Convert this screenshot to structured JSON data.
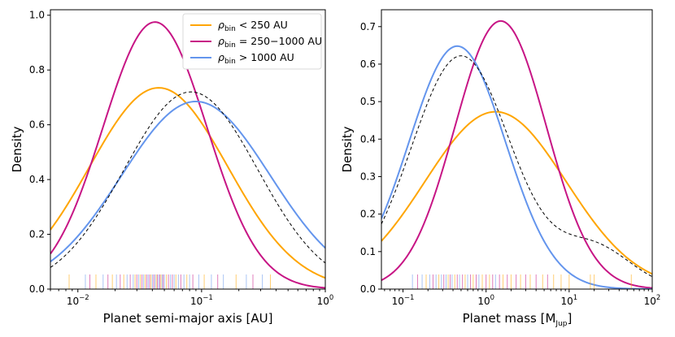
{
  "colors": {
    "close": "#ffa500",
    "mid": "#c71585",
    "wide": "#6495ed",
    "all": "#000000"
  },
  "legend": [
    {
      "sym": "ρ",
      "sub": "bin",
      "rest": " < 250 AU",
      "color": "#ffa500"
    },
    {
      "sym": "ρ",
      "sub": "bin",
      "rest": " = 250−1000 AU",
      "color": "#c71585"
    },
    {
      "sym": "ρ",
      "sub": "bin",
      "rest": " > 1000 AU",
      "color": "#6495ed"
    }
  ],
  "chart_data": [
    {
      "type": "line",
      "xscale": "log",
      "xlim": [
        0.006,
        1.0
      ],
      "ylim": [
        0,
        1.02
      ],
      "xlabel": "Planet semi-major axis [AU]",
      "ylabel": "Density",
      "yticks": [
        "0.0",
        "0.2",
        "0.4",
        "0.6",
        "0.8",
        "1.0"
      ],
      "ytick_values": [
        0,
        0.2,
        0.4,
        0.6,
        0.8,
        1.0
      ],
      "xticks": [
        {
          "base": "10",
          "exp": "−2",
          "value": 0.01
        },
        {
          "base": "10",
          "exp": "−1",
          "value": 0.1
        },
        {
          "base": "10",
          "exp": "0",
          "value": 1.0
        }
      ],
      "series": [
        {
          "name": "close",
          "peak_x": 0.045,
          "peak_y": 0.735,
          "sigma_dex": 0.56,
          "lower_floor": 0.0,
          "upper_floor": 0.0
        },
        {
          "name": "mid",
          "peak_x": 0.042,
          "peak_y": 0.975,
          "sigma_dex": 0.42,
          "lower_floor": 0.0,
          "upper_floor": 0.0
        },
        {
          "name": "wide",
          "peak_x": 0.09,
          "peak_y": 0.685,
          "sigma_dex": 0.6,
          "lower_floor": 0.0,
          "upper_floor": 0.0
        },
        {
          "name": "all",
          "peak_x": 0.082,
          "peak_y": 0.72,
          "sigma_dex": 0.54,
          "lower_floor": 0.0,
          "upper_floor": 0.0,
          "dashed": true
        }
      ],
      "rug": [
        {
          "x": 0.0085,
          "c": "close"
        },
        {
          "x": 0.0115,
          "c": "wide"
        },
        {
          "x": 0.0125,
          "c": "mid"
        },
        {
          "x": 0.014,
          "c": "close"
        },
        {
          "x": 0.016,
          "c": "wide"
        },
        {
          "x": 0.0175,
          "c": "mid"
        },
        {
          "x": 0.019,
          "c": "close"
        },
        {
          "x": 0.0205,
          "c": "wide"
        },
        {
          "x": 0.022,
          "c": "mid"
        },
        {
          "x": 0.0235,
          "c": "close"
        },
        {
          "x": 0.025,
          "c": "wide"
        },
        {
          "x": 0.0265,
          "c": "mid"
        },
        {
          "x": 0.028,
          "c": "wide"
        },
        {
          "x": 0.029,
          "c": "close"
        },
        {
          "x": 0.03,
          "c": "mid"
        },
        {
          "x": 0.031,
          "c": "wide"
        },
        {
          "x": 0.032,
          "c": "close"
        },
        {
          "x": 0.033,
          "c": "mid"
        },
        {
          "x": 0.034,
          "c": "wide"
        },
        {
          "x": 0.035,
          "c": "close"
        },
        {
          "x": 0.036,
          "c": "mid"
        },
        {
          "x": 0.037,
          "c": "wide"
        },
        {
          "x": 0.038,
          "c": "mid"
        },
        {
          "x": 0.039,
          "c": "close"
        },
        {
          "x": 0.04,
          "c": "wide"
        },
        {
          "x": 0.041,
          "c": "mid"
        },
        {
          "x": 0.042,
          "c": "wide"
        },
        {
          "x": 0.043,
          "c": "close"
        },
        {
          "x": 0.044,
          "c": "mid"
        },
        {
          "x": 0.045,
          "c": "wide"
        },
        {
          "x": 0.046,
          "c": "mid"
        },
        {
          "x": 0.047,
          "c": "close"
        },
        {
          "x": 0.048,
          "c": "wide"
        },
        {
          "x": 0.049,
          "c": "mid"
        },
        {
          "x": 0.05,
          "c": "wide"
        },
        {
          "x": 0.052,
          "c": "close"
        },
        {
          "x": 0.054,
          "c": "mid"
        },
        {
          "x": 0.056,
          "c": "wide"
        },
        {
          "x": 0.058,
          "c": "mid"
        },
        {
          "x": 0.06,
          "c": "wide"
        },
        {
          "x": 0.062,
          "c": "close"
        },
        {
          "x": 0.065,
          "c": "wide"
        },
        {
          "x": 0.068,
          "c": "mid"
        },
        {
          "x": 0.072,
          "c": "wide"
        },
        {
          "x": 0.076,
          "c": "close"
        },
        {
          "x": 0.08,
          "c": "wide"
        },
        {
          "x": 0.085,
          "c": "mid"
        },
        {
          "x": 0.095,
          "c": "wide"
        },
        {
          "x": 0.105,
          "c": "close"
        },
        {
          "x": 0.12,
          "c": "wide"
        },
        {
          "x": 0.135,
          "c": "mid"
        },
        {
          "x": 0.15,
          "c": "wide"
        },
        {
          "x": 0.19,
          "c": "close"
        },
        {
          "x": 0.23,
          "c": "wide"
        },
        {
          "x": 0.26,
          "c": "mid"
        },
        {
          "x": 0.31,
          "c": "wide"
        },
        {
          "x": 0.36,
          "c": "close"
        }
      ]
    },
    {
      "type": "line",
      "xscale": "log",
      "xlim": [
        0.055,
        100.0
      ],
      "ylim": [
        0,
        0.745
      ],
      "xlabel_main": "Planet mass [M",
      "xlabel_sub": "Jup",
      "xlabel_end": "]",
      "ylabel": "Density",
      "yticks": [
        "0.0",
        "0.1",
        "0.2",
        "0.3",
        "0.4",
        "0.5",
        "0.6",
        "0.7"
      ],
      "ytick_values": [
        0,
        0.1,
        0.2,
        0.3,
        0.4,
        0.5,
        0.6,
        0.7
      ],
      "xticks": [
        {
          "base": "10",
          "exp": "−1",
          "value": 0.1
        },
        {
          "base": "10",
          "exp": "0",
          "value": 1.0
        },
        {
          "base": "10",
          "exp": "1",
          "value": 10.0
        },
        {
          "base": "10",
          "exp": "2",
          "value": 100.0
        }
      ],
      "series": [
        {
          "name": "close",
          "peak_x": 1.3,
          "peak_y": 0.473,
          "sigma_dex": 0.85,
          "lower_floor": 0.0,
          "upper_floor": 0.0
        },
        {
          "name": "mid",
          "peak_x": 1.5,
          "peak_y": 0.715,
          "sigma_dex": 0.55,
          "lower_floor": 0.0,
          "upper_floor": 0.0
        },
        {
          "name": "wide",
          "peak_x": 0.45,
          "peak_y": 0.648,
          "sigma_dex": 0.58,
          "lower_floor": 0.0,
          "upper_floor": 0.0
        },
        {
          "name": "all",
          "peak_x": 0.5,
          "peak_y": 0.622,
          "sigma_dex": 0.6,
          "lower_floor": 0.0,
          "upper_floor": 0.0,
          "dashed": true,
          "tail": true
        }
      ],
      "rug": [
        {
          "x": 0.13,
          "c": "wide"
        },
        {
          "x": 0.15,
          "c": "mid"
        },
        {
          "x": 0.17,
          "c": "wide"
        },
        {
          "x": 0.19,
          "c": "close"
        },
        {
          "x": 0.21,
          "c": "wide"
        },
        {
          "x": 0.23,
          "c": "mid"
        },
        {
          "x": 0.25,
          "c": "wide"
        },
        {
          "x": 0.27,
          "c": "close"
        },
        {
          "x": 0.29,
          "c": "wide"
        },
        {
          "x": 0.31,
          "c": "mid"
        },
        {
          "x": 0.33,
          "c": "wide"
        },
        {
          "x": 0.35,
          "c": "close"
        },
        {
          "x": 0.37,
          "c": "mid"
        },
        {
          "x": 0.39,
          "c": "wide"
        },
        {
          "x": 0.42,
          "c": "close"
        },
        {
          "x": 0.45,
          "c": "mid"
        },
        {
          "x": 0.48,
          "c": "wide"
        },
        {
          "x": 0.52,
          "c": "mid"
        },
        {
          "x": 0.56,
          "c": "close"
        },
        {
          "x": 0.6,
          "c": "wide"
        },
        {
          "x": 0.65,
          "c": "mid"
        },
        {
          "x": 0.7,
          "c": "close"
        },
        {
          "x": 0.76,
          "c": "mid"
        },
        {
          "x": 0.82,
          "c": "wide"
        },
        {
          "x": 0.9,
          "c": "close"
        },
        {
          "x": 1.0,
          "c": "mid"
        },
        {
          "x": 1.1,
          "c": "close"
        },
        {
          "x": 1.2,
          "c": "mid"
        },
        {
          "x": 1.3,
          "c": "wide"
        },
        {
          "x": 1.45,
          "c": "mid"
        },
        {
          "x": 1.6,
          "c": "close"
        },
        {
          "x": 1.8,
          "c": "mid"
        },
        {
          "x": 2.0,
          "c": "close"
        },
        {
          "x": 2.3,
          "c": "mid"
        },
        {
          "x": 2.6,
          "c": "close"
        },
        {
          "x": 3.0,
          "c": "mid"
        },
        {
          "x": 3.4,
          "c": "close"
        },
        {
          "x": 4.0,
          "c": "mid"
        },
        {
          "x": 4.8,
          "c": "close"
        },
        {
          "x": 5.5,
          "c": "mid"
        },
        {
          "x": 6.5,
          "c": "close"
        },
        {
          "x": 8.0,
          "c": "close"
        },
        {
          "x": 10.0,
          "c": "close"
        },
        {
          "x": 18.0,
          "c": "close"
        },
        {
          "x": 20.0,
          "c": "close"
        },
        {
          "x": 56.0,
          "c": "close"
        }
      ]
    }
  ]
}
